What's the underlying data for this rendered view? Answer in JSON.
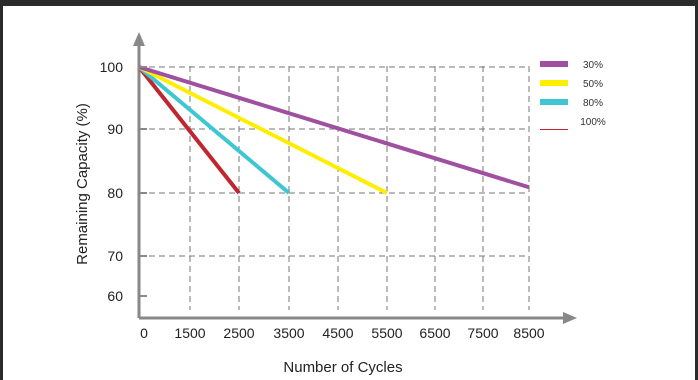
{
  "chart_data": {
    "type": "line",
    "title": "",
    "xlabel": "Number of Cycles",
    "ylabel": "Remaining Capacity (%)",
    "x_ticks": [
      "0",
      "1500",
      "2500",
      "3500",
      "4500",
      "5500",
      "6500",
      "7500",
      "8500"
    ],
    "x_tick_values": [
      0,
      1500,
      2500,
      3500,
      4500,
      5500,
      6500,
      7500,
      8500
    ],
    "y_ticks": [
      "100",
      "90",
      "80",
      "70",
      "60"
    ],
    "y_tick_values": [
      100,
      90,
      80,
      70,
      60
    ],
    "ylim": [
      58,
      108
    ],
    "grid": true,
    "legend_position": "top-right",
    "series": [
      {
        "name": "30%",
        "color": "#a050a0",
        "x": [
          0,
          8500
        ],
        "y": [
          100,
          79
        ]
      },
      {
        "name": "50%",
        "color": "#ffee00",
        "x": [
          0,
          5500
        ],
        "y": [
          100,
          78
        ]
      },
      {
        "name": "80%",
        "color": "#3ec6d3",
        "x": [
          0,
          3500
        ],
        "y": [
          100,
          78
        ]
      },
      {
        "name": "100%",
        "color": "#c0262f",
        "x": [
          0,
          2500
        ],
        "y": [
          100,
          78
        ]
      }
    ]
  }
}
